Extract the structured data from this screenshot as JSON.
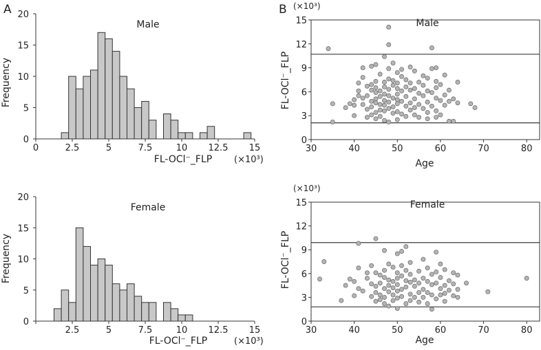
{
  "panels": {
    "A": "A",
    "B": "B"
  },
  "chart_data": [
    {
      "id": "hist-male",
      "type": "bar",
      "title": "Male",
      "xlabel": "FL-OCl⁻_FLP",
      "ylabel": "Frequency",
      "multiplier": "(×10³)",
      "bin_width": 0.5,
      "bin_starts": [
        1.75,
        2.25,
        2.75,
        3.25,
        3.75,
        4.25,
        4.75,
        5.25,
        5.75,
        6.25,
        6.75,
        7.25,
        7.75,
        8.25,
        8.75,
        9.25,
        9.75,
        10.25,
        10.75,
        11.25,
        11.75,
        12.25,
        12.75,
        13.25,
        13.75,
        14.25
      ],
      "values": [
        1,
        10,
        8,
        10,
        11,
        17,
        16,
        14,
        10,
        8,
        5,
        6,
        3,
        0,
        4,
        3,
        1,
        1,
        0,
        1,
        2,
        0,
        0,
        0,
        0,
        1
      ],
      "xlim": [
        0,
        15
      ],
      "ylim": [
        0,
        20
      ],
      "xticks": [
        0,
        2.5,
        5,
        7.5,
        10,
        12.5,
        15
      ],
      "xtick_labels": [
        "0",
        "2.5",
        "5",
        "7.5",
        "10",
        "12.5",
        "15"
      ],
      "yticks": [
        0,
        5,
        10,
        15,
        20
      ],
      "ytick_labels": [
        "0",
        "5",
        "10",
        "15",
        "20"
      ],
      "bar_color": "#c8c8c8"
    },
    {
      "id": "hist-female",
      "type": "bar",
      "title": "Female",
      "xlabel": "FL-OCl⁻_FLP",
      "ylabel": "Frequency",
      "multiplier": "(×10³)",
      "bin_width": 0.5,
      "bin_starts": [
        1.25,
        1.75,
        2.25,
        2.75,
        3.25,
        3.75,
        4.25,
        4.75,
        5.25,
        5.75,
        6.25,
        6.75,
        7.25,
        7.75,
        8.25,
        8.75,
        9.25,
        9.75,
        10.25
      ],
      "values": [
        2,
        5,
        3,
        15,
        12,
        9,
        10,
        9,
        6,
        5,
        6,
        4,
        3,
        3,
        0,
        3,
        2,
        1,
        1
      ],
      "xlim": [
        0,
        15
      ],
      "ylim": [
        0,
        20
      ],
      "xticks": [
        0,
        2.5,
        5,
        7.5,
        10,
        12.5,
        15
      ],
      "xtick_labels": [
        "2.5",
        "5",
        "7.5",
        "10",
        "12.5",
        "15"
      ],
      "xtick_label_values": [
        2.5,
        5,
        7.5,
        10,
        12.5,
        15
      ],
      "yticks": [
        0,
        5,
        10,
        15,
        20
      ],
      "ytick_labels": [
        "0",
        "5",
        "10",
        "15",
        "20"
      ],
      "bar_color": "#c8c8c8"
    },
    {
      "id": "scatter-male",
      "type": "scatter",
      "title": "Male",
      "xlabel": "Age",
      "ylabel": "FL-OCl⁻_FLP",
      "multiplier": "(×10³)",
      "xlim": [
        30,
        83
      ],
      "ylim": [
        0,
        15
      ],
      "xticks": [
        30,
        40,
        50,
        60,
        70,
        80
      ],
      "xtick_labels": [
        "30",
        "40",
        "50",
        "60",
        "70",
        "80"
      ],
      "yticks": [
        0,
        3,
        6,
        9,
        12,
        15
      ],
      "ytick_labels": [
        "0",
        "3",
        "6",
        "9",
        "12",
        "15"
      ],
      "hlines": [
        10.7,
        2.1
      ],
      "point_color": "#b4b4b4",
      "points": [
        [
          34,
          11.4
        ],
        [
          35,
          4.5
        ],
        [
          35,
          2.2
        ],
        [
          38,
          4
        ],
        [
          39,
          4.5
        ],
        [
          40,
          3
        ],
        [
          40,
          4.3
        ],
        [
          40,
          5
        ],
        [
          41,
          5.5
        ],
        [
          41,
          6.1
        ],
        [
          41,
          7.1
        ],
        [
          42,
          9
        ],
        [
          42,
          7.8
        ],
        [
          42,
          5.2
        ],
        [
          42,
          4.4
        ],
        [
          43,
          6.7
        ],
        [
          43,
          5.5
        ],
        [
          43,
          3.8
        ],
        [
          43,
          2.8
        ],
        [
          44,
          9.2
        ],
        [
          44,
          6.9
        ],
        [
          44,
          6.2
        ],
        [
          44,
          4.8
        ],
        [
          44,
          4.1
        ],
        [
          44,
          3.1
        ],
        [
          45,
          9.4
        ],
        [
          45,
          7.3
        ],
        [
          45,
          6.5
        ],
        [
          45,
          5.9
        ],
        [
          45,
          5.1
        ],
        [
          45,
          4.6
        ],
        [
          45,
          3.4
        ],
        [
          45,
          2.6
        ],
        [
          46,
          8.2
        ],
        [
          46,
          6.1
        ],
        [
          46,
          5.4
        ],
        [
          46,
          4.4
        ],
        [
          46,
          3.7
        ],
        [
          46,
          2.9
        ],
        [
          47,
          10.4
        ],
        [
          47,
          7.2
        ],
        [
          47,
          6.6
        ],
        [
          47,
          5.7
        ],
        [
          47,
          4.9
        ],
        [
          47,
          4.3
        ],
        [
          47,
          3.6
        ],
        [
          47,
          2.4
        ],
        [
          48,
          14.1
        ],
        [
          48,
          11.9
        ],
        [
          48,
          8.9
        ],
        [
          48,
          7.6
        ],
        [
          48,
          6.3
        ],
        [
          48,
          5.5
        ],
        [
          48,
          4.7
        ],
        [
          48,
          3.9
        ],
        [
          48,
          2.2
        ],
        [
          49,
          9.6
        ],
        [
          49,
          7.4
        ],
        [
          49,
          6.8
        ],
        [
          49,
          5.2
        ],
        [
          49,
          4.1
        ],
        [
          49,
          3.3
        ],
        [
          50,
          8.4
        ],
        [
          50,
          7.1
        ],
        [
          50,
          6.4
        ],
        [
          50,
          5.7
        ],
        [
          50,
          5.0
        ],
        [
          50,
          4.5
        ],
        [
          50,
          3.5
        ],
        [
          50,
          2.5
        ],
        [
          51,
          8.8
        ],
        [
          51,
          7.9
        ],
        [
          51,
          6.1
        ],
        [
          51,
          4.8
        ],
        [
          51,
          3.2
        ],
        [
          52,
          7.5
        ],
        [
          52,
          6.6
        ],
        [
          52,
          5.4
        ],
        [
          52,
          4.2
        ],
        [
          52,
          2.9
        ],
        [
          53,
          9.1
        ],
        [
          53,
          7.1
        ],
        [
          53,
          6.2
        ],
        [
          53,
          4.6
        ],
        [
          53,
          3.7
        ],
        [
          54,
          8.6
        ],
        [
          54,
          6.4
        ],
        [
          54,
          5.1
        ],
        [
          54,
          4.0
        ],
        [
          54,
          3.1
        ],
        [
          55,
          7.2
        ],
        [
          55,
          5.8
        ],
        [
          55,
          4.4
        ],
        [
          55,
          2.8
        ],
        [
          56,
          8.0
        ],
        [
          56,
          6.8
        ],
        [
          56,
          5.5
        ],
        [
          56,
          3.9
        ],
        [
          57,
          7.7
        ],
        [
          57,
          6.1
        ],
        [
          57,
          4.7
        ],
        [
          57,
          3.4
        ],
        [
          57,
          2.6
        ],
        [
          58,
          11.5
        ],
        [
          58,
          8.9
        ],
        [
          58,
          5.9
        ],
        [
          58,
          4.2
        ],
        [
          59,
          9.0
        ],
        [
          59,
          7.3
        ],
        [
          59,
          6.5
        ],
        [
          59,
          5.2
        ],
        [
          59,
          3.6
        ],
        [
          59,
          2.8
        ],
        [
          60,
          6.9
        ],
        [
          60,
          4.9
        ],
        [
          60,
          3.1
        ],
        [
          61,
          8.1
        ],
        [
          61,
          5.6
        ],
        [
          61,
          4.3
        ],
        [
          62,
          6.2
        ],
        [
          62,
          4.8
        ],
        [
          62,
          2.3
        ],
        [
          63,
          5.1
        ],
        [
          63,
          2.3
        ],
        [
          64,
          7.2
        ],
        [
          64,
          4.6
        ],
        [
          67,
          4.5
        ],
        [
          68,
          4.0
        ]
      ]
    },
    {
      "id": "scatter-female",
      "type": "scatter",
      "title": "Female",
      "xlabel": "Age",
      "ylabel": "FL-OCl⁻_FLP",
      "multiplier": "(×10³)",
      "xlim": [
        30,
        83
      ],
      "ylim": [
        0,
        15
      ],
      "xticks": [
        30,
        40,
        50,
        60,
        70,
        80
      ],
      "xtick_labels": [
        "30",
        "40",
        "50",
        "60",
        "70",
        "80"
      ],
      "yticks": [
        0,
        3,
        6,
        9,
        12,
        15
      ],
      "ytick_labels": [
        "0",
        "3",
        "6",
        "9",
        "12",
        "15"
      ],
      "hlines": [
        9.9,
        1.8
      ],
      "point_color": "#b4b4b4",
      "points": [
        [
          32,
          5.3
        ],
        [
          33,
          7.5
        ],
        [
          37,
          2.6
        ],
        [
          38,
          4.5
        ],
        [
          39,
          5.3
        ],
        [
          40,
          5.0
        ],
        [
          40,
          3.2
        ],
        [
          41,
          9.8
        ],
        [
          41,
          6.7
        ],
        [
          41,
          4.1
        ],
        [
          42,
          3.8
        ],
        [
          43,
          6.1
        ],
        [
          43,
          5.4
        ],
        [
          44,
          7.0
        ],
        [
          44,
          4.7
        ],
        [
          44,
          3.1
        ],
        [
          45,
          10.4
        ],
        [
          45,
          6.1
        ],
        [
          45,
          4.4
        ],
        [
          45,
          3.6
        ],
        [
          45,
          2.5
        ],
        [
          46,
          5.8
        ],
        [
          46,
          4.8
        ],
        [
          46,
          3.3
        ],
        [
          46,
          2.7
        ],
        [
          47,
          8.9
        ],
        [
          47,
          6.4
        ],
        [
          47,
          5.5
        ],
        [
          47,
          4.1
        ],
        [
          47,
          3.0
        ],
        [
          47,
          2.2
        ],
        [
          48,
          7.2
        ],
        [
          48,
          5.2
        ],
        [
          48,
          4.5
        ],
        [
          48,
          3.7
        ],
        [
          48,
          1.9
        ],
        [
          49,
          6.8
        ],
        [
          49,
          5.0
        ],
        [
          49,
          4.2
        ],
        [
          49,
          3.3
        ],
        [
          49,
          2.6
        ],
        [
          50,
          8.5
        ],
        [
          50,
          6.1
        ],
        [
          50,
          5.4
        ],
        [
          50,
          4.6
        ],
        [
          50,
          3.8
        ],
        [
          50,
          2.9
        ],
        [
          50,
          1.6
        ],
        [
          51,
          8.8
        ],
        [
          51,
          7.0
        ],
        [
          51,
          5.7
        ],
        [
          51,
          4.0
        ],
        [
          51,
          3.1
        ],
        [
          52,
          9.4
        ],
        [
          52,
          6.4
        ],
        [
          52,
          5.1
        ],
        [
          52,
          4.3
        ],
        [
          52,
          2.2
        ],
        [
          53,
          7.4
        ],
        [
          53,
          5.9
        ],
        [
          53,
          4.9
        ],
        [
          53,
          3.4
        ],
        [
          53,
          2.6
        ],
        [
          54,
          5.2
        ],
        [
          54,
          4.4
        ],
        [
          54,
          3.0
        ],
        [
          55,
          6.3
        ],
        [
          55,
          4.8
        ],
        [
          55,
          3.6
        ],
        [
          55,
          2.4
        ],
        [
          56,
          7.8
        ],
        [
          56,
          5.4
        ],
        [
          56,
          4.0
        ],
        [
          56,
          3.0
        ],
        [
          57,
          6.7
        ],
        [
          57,
          5.0
        ],
        [
          57,
          3.6
        ],
        [
          57,
          2.2
        ],
        [
          58,
          5.9
        ],
        [
          58,
          4.6
        ],
        [
          58,
          3.3
        ],
        [
          58,
          1.5
        ],
        [
          59,
          8.7
        ],
        [
          59,
          6.2
        ],
        [
          59,
          4.8
        ],
        [
          59,
          2.8
        ],
        [
          60,
          7.2
        ],
        [
          60,
          5.5
        ],
        [
          60,
          4.1
        ],
        [
          60,
          3.3
        ],
        [
          61,
          6.5
        ],
        [
          61,
          4.5
        ],
        [
          61,
          3.5
        ],
        [
          61,
          2.5
        ],
        [
          62,
          5.1
        ],
        [
          62,
          3.9
        ],
        [
          63,
          6.1
        ],
        [
          63,
          4.7
        ],
        [
          63,
          3.2
        ],
        [
          64,
          5.8
        ],
        [
          64,
          4.0
        ],
        [
          64,
          3.0
        ],
        [
          66,
          4.8
        ],
        [
          71,
          3.7
        ],
        [
          80,
          5.4
        ]
      ]
    }
  ]
}
